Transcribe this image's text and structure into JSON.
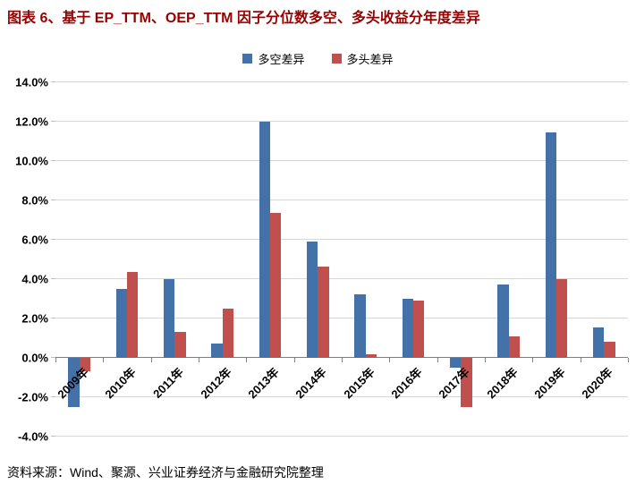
{
  "figure": {
    "title": "图表 6、基于 EP_TTM、OEP_TTM 因子分位数多空、多头收益分年度差异",
    "source": "资料来源：Wind、聚源、兴业证券经济与金融研究院整理",
    "title_color": "#990000"
  },
  "chart_data": {
    "type": "bar",
    "categories": [
      "2009年",
      "2010年",
      "2011年",
      "2012年",
      "2013年",
      "2014年",
      "2015年",
      "2016年",
      "2017年",
      "2018年",
      "2019年",
      "2020年"
    ],
    "series": [
      {
        "name": "多空差异",
        "color": "#4472A8",
        "values": [
          -2.5,
          3.5,
          4.0,
          0.75,
          12.0,
          5.9,
          3.25,
          3.0,
          -0.5,
          3.75,
          11.45,
          1.55
        ]
      },
      {
        "name": "多头差异",
        "color": "#C0504D",
        "values": [
          -0.7,
          4.35,
          1.3,
          2.5,
          7.35,
          4.65,
          0.2,
          2.9,
          -2.5,
          1.1,
          4.0,
          0.8
        ]
      }
    ],
    "ylim": [
      -4,
      14
    ],
    "yticks": [
      -4,
      -2,
      0,
      2,
      4,
      6,
      8,
      10,
      12,
      14
    ],
    "ytick_labels": [
      "-4.0%",
      "-2.0%",
      "0.0%",
      "2.0%",
      "4.0%",
      "6.0%",
      "8.0%",
      "10.0%",
      "12.0%",
      "14.0%"
    ],
    "grid": true,
    "legend_position": "top"
  }
}
